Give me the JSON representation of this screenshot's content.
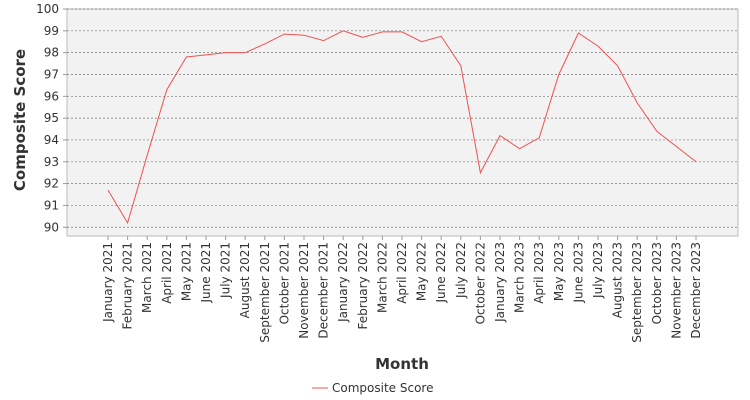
{
  "chart_data": {
    "type": "line",
    "x_label": "Month",
    "y_label": "Composite Score",
    "categories": [
      "January 2021",
      "February 2021",
      "March 2021",
      "April 2021",
      "May 2021",
      "June 2021",
      "July 2021",
      "August 2021",
      "September 2021",
      "October 2021",
      "November 2021",
      "December 2021",
      "January 2022",
      "February 2022",
      "March 2022",
      "April 2022",
      "May 2022",
      "June 2022",
      "July 2022",
      "October 2022",
      "January 2023",
      "March 2023",
      "April 2023",
      "May 2023",
      "June 2023",
      "July 2023",
      "August 2023",
      "September 2023",
      "October 2023",
      "November 2023",
      "December 2023"
    ],
    "series": [
      {
        "name": "Composite Score",
        "color": "#f05050",
        "values": [
          91.7,
          90.2,
          93.3,
          96.3,
          97.8,
          97.9,
          98.0,
          98.0,
          98.4,
          98.85,
          98.8,
          98.55,
          99.0,
          98.7,
          98.95,
          98.95,
          98.5,
          98.75,
          97.4,
          92.5,
          94.2,
          93.6,
          94.1,
          97.0,
          98.9,
          98.3,
          97.4,
          95.7,
          94.4,
          93.7,
          93.0
        ]
      }
    ],
    "ylim": [
      89.6,
      100
    ],
    "yticks": [
      90,
      91,
      92,
      93,
      94,
      95,
      96,
      97,
      98,
      99,
      100
    ],
    "grid": true,
    "legend": "bottom"
  }
}
